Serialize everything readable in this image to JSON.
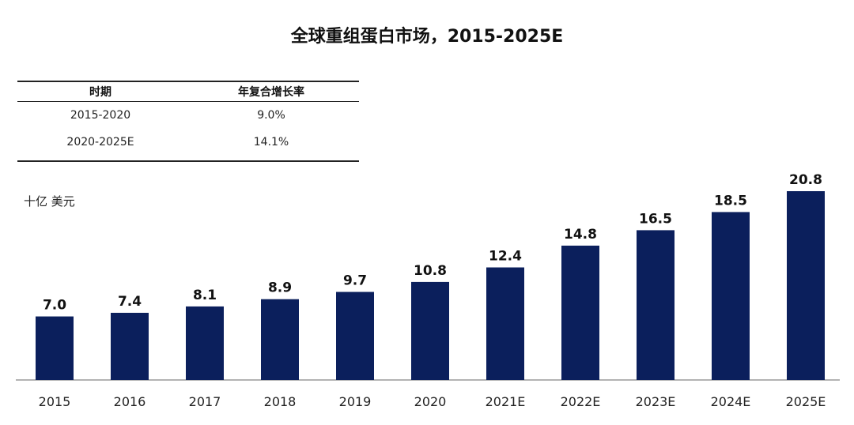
{
  "chart_data": {
    "type": "bar",
    "title": "全球重组蛋白市场，2015-2025E",
    "ylabel": "十亿 美元",
    "xlabel": "",
    "categories": [
      "2015",
      "2016",
      "2017",
      "2018",
      "2019",
      "2020",
      "2021E",
      "2022E",
      "2023E",
      "2024E",
      "2025E"
    ],
    "values": [
      7.0,
      7.4,
      8.1,
      8.9,
      9.7,
      10.8,
      12.4,
      14.8,
      16.5,
      18.5,
      20.8
    ],
    "value_labels": [
      "7.0",
      "7.4",
      "8.1",
      "8.9",
      "9.7",
      "10.8",
      "12.4",
      "14.8",
      "16.5",
      "18.5",
      "20.8"
    ],
    "ylim": [
      0,
      22
    ],
    "grid": false,
    "bar_color": "#0b1f5c"
  },
  "cagr_table": {
    "headers": [
      "时期",
      "年复合增长率"
    ],
    "rows": [
      [
        "2015-2020",
        "9.0%"
      ],
      [
        "2020-2025E",
        "14.1%"
      ]
    ]
  }
}
